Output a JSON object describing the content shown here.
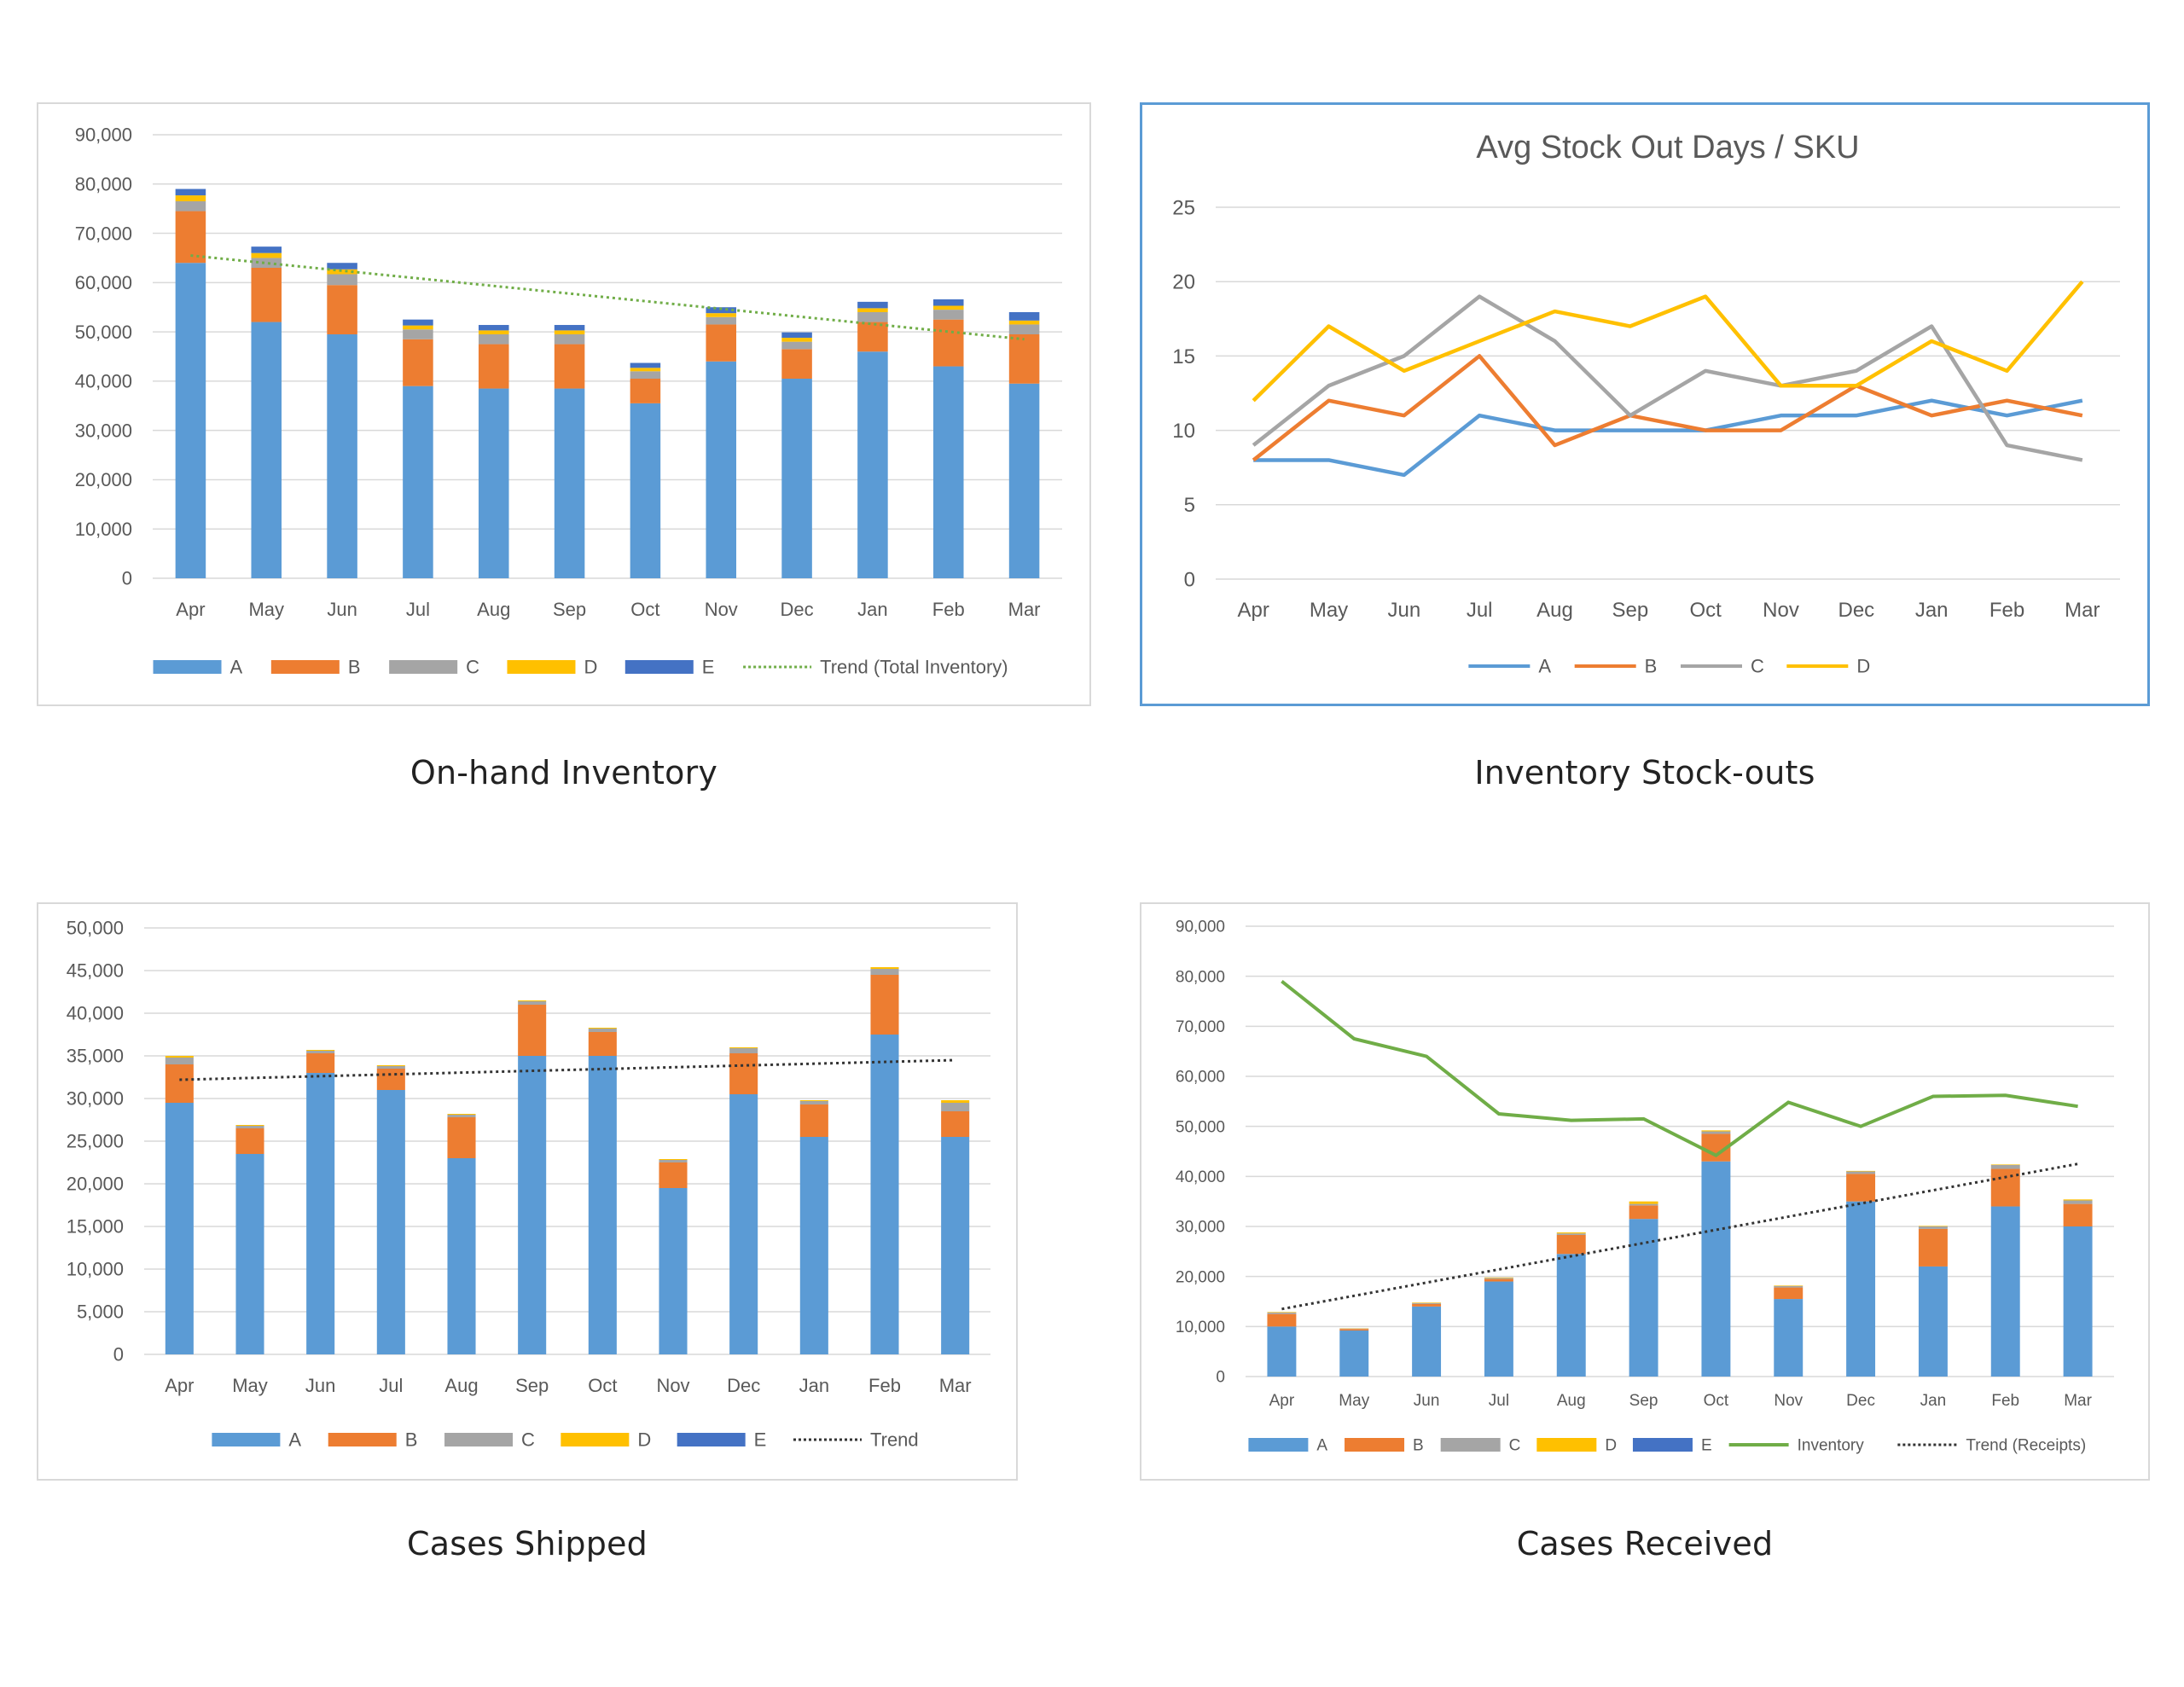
{
  "colors": {
    "A": "#5b9bd5",
    "B": "#ed7d31",
    "C": "#a5a5a5",
    "D": "#ffc000",
    "E": "#4472c4",
    "grid": "#d9d9d9",
    "axis": "#595959",
    "trendGreen": "#70ad47",
    "trendBlack": "#333333",
    "inventory": "#70ad47"
  },
  "captions": {
    "c1": "On-hand Inventory",
    "c2": "Inventory Stock-outs",
    "c3": "Cases Shipped",
    "c4": "Cases Received"
  },
  "chart_data": [
    {
      "type": "bar",
      "stacked": true,
      "title": "",
      "categories": [
        "Apr",
        "May",
        "Jun",
        "Jul",
        "Aug",
        "Sep",
        "Oct",
        "Nov",
        "Dec",
        "Jan",
        "Feb",
        "Mar"
      ],
      "ylim": [
        0,
        90000
      ],
      "yticks": [
        "0",
        "10,000",
        "20,000",
        "30,000",
        "40,000",
        "50,000",
        "60,000",
        "70,000",
        "80,000",
        "90,000"
      ],
      "series": [
        {
          "name": "A",
          "values": [
            64000,
            52000,
            49500,
            39000,
            38500,
            38500,
            35500,
            44000,
            40500,
            46000,
            43000,
            39500
          ]
        },
        {
          "name": "B",
          "values": [
            10500,
            11000,
            10000,
            9500,
            9000,
            9000,
            5000,
            7500,
            6000,
            6000,
            9500,
            10000
          ]
        },
        {
          "name": "C",
          "values": [
            2000,
            2000,
            2200,
            2000,
            2000,
            2000,
            1500,
            1500,
            1500,
            2000,
            2000,
            2000
          ]
        },
        {
          "name": "D",
          "values": [
            1200,
            1000,
            1000,
            800,
            800,
            800,
            700,
            800,
            800,
            800,
            800,
            800
          ]
        },
        {
          "name": "E",
          "values": [
            1300,
            1300,
            1300,
            1200,
            1100,
            1100,
            1000,
            1200,
            1100,
            1300,
            1300,
            1700
          ]
        }
      ],
      "trend": {
        "name": "Trend (Total Inventory)",
        "start": 65500,
        "end": 48500
      },
      "legend_position": "bottom",
      "grid": true
    },
    {
      "type": "line",
      "title": "Avg Stock Out Days / SKU",
      "categories": [
        "Apr",
        "May",
        "Jun",
        "Jul",
        "Aug",
        "Sep",
        "Oct",
        "Nov",
        "Dec",
        "Jan",
        "Feb",
        "Mar"
      ],
      "ylim": [
        0,
        25
      ],
      "yticks": [
        "0",
        "5",
        "10",
        "15",
        "20",
        "25"
      ],
      "series": [
        {
          "name": "A",
          "values": [
            8,
            8,
            7,
            11,
            10,
            10,
            10,
            11,
            11,
            12,
            11,
            12
          ]
        },
        {
          "name": "B",
          "values": [
            8,
            12,
            11,
            15,
            9,
            11,
            10,
            10,
            13,
            11,
            12,
            11
          ]
        },
        {
          "name": "C",
          "values": [
            9,
            13,
            15,
            19,
            16,
            11,
            14,
            13,
            14,
            17,
            9,
            8
          ]
        },
        {
          "name": "D",
          "values": [
            12,
            17,
            14,
            16,
            18,
            17,
            19,
            13,
            13,
            16,
            14,
            20
          ]
        }
      ],
      "legend_position": "bottom",
      "grid": true
    },
    {
      "type": "bar",
      "stacked": true,
      "title": "",
      "categories": [
        "Apr",
        "May",
        "Jun",
        "Jul",
        "Aug",
        "Sep",
        "Oct",
        "Nov",
        "Dec",
        "Jan",
        "Feb",
        "Mar"
      ],
      "ylim": [
        0,
        50000
      ],
      "yticks": [
        "0",
        "5,000",
        "10,000",
        "15,000",
        "20,000",
        "25,000",
        "30,000",
        "35,000",
        "40,000",
        "45,000",
        "50,000"
      ],
      "series": [
        {
          "name": "A",
          "values": [
            29500,
            23500,
            33000,
            31000,
            23000,
            35000,
            35000,
            19500,
            30500,
            25500,
            37500,
            25500
          ]
        },
        {
          "name": "B",
          "values": [
            4500,
            3000,
            2300,
            2500,
            4800,
            6000,
            2800,
            3000,
            4800,
            3800,
            7000,
            3000
          ]
        },
        {
          "name": "C",
          "values": [
            800,
            300,
            300,
            300,
            300,
            400,
            400,
            300,
            600,
            400,
            700,
            1000
          ]
        },
        {
          "name": "D",
          "values": [
            200,
            100,
            100,
            100,
            100,
            100,
            100,
            100,
            100,
            100,
            200,
            300
          ]
        },
        {
          "name": "E",
          "values": [
            0,
            0,
            0,
            0,
            0,
            0,
            0,
            0,
            0,
            0,
            0,
            0
          ]
        }
      ],
      "trend": {
        "name": "Trend",
        "start": 32200,
        "end": 34500
      },
      "legend_position": "bottom",
      "grid": true
    },
    {
      "type": "bar",
      "stacked": true,
      "title": "",
      "categories": [
        "Apr",
        "May",
        "Jun",
        "Jul",
        "Aug",
        "Sep",
        "Oct",
        "Nov",
        "Dec",
        "Jan",
        "Feb",
        "Mar"
      ],
      "ylim": [
        0,
        90000
      ],
      "yticks": [
        "0",
        "10,000",
        "20,000",
        "30,000",
        "40,000",
        "50,000",
        "60,000",
        "70,000",
        "80,000",
        "90,000"
      ],
      "series": [
        {
          "name": "A",
          "values": [
            10000,
            9200,
            14000,
            19000,
            24500,
            31500,
            43000,
            15500,
            35000,
            22000,
            34000,
            30000
          ]
        },
        {
          "name": "B",
          "values": [
            2500,
            300,
            500,
            500,
            3800,
            2700,
            5500,
            2300,
            5500,
            7500,
            7500,
            4500
          ]
        },
        {
          "name": "C",
          "values": [
            300,
            100,
            200,
            200,
            300,
            300,
            500,
            300,
            500,
            500,
            800,
            700
          ]
        },
        {
          "name": "D",
          "values": [
            100,
            50,
            100,
            100,
            200,
            500,
            200,
            100,
            100,
            100,
            100,
            200
          ]
        },
        {
          "name": "E",
          "values": [
            0,
            0,
            0,
            0,
            0,
            0,
            0,
            0,
            0,
            0,
            0,
            0
          ]
        }
      ],
      "line": {
        "name": "Inventory",
        "values": [
          79000,
          67500,
          64000,
          52500,
          51200,
          51500,
          44200,
          54800,
          50000,
          56000,
          56200,
          54000
        ]
      },
      "trend": {
        "name": "Trend (Receipts)",
        "start": 13500,
        "end": 42500
      },
      "legend_position": "bottom",
      "grid": true
    }
  ]
}
